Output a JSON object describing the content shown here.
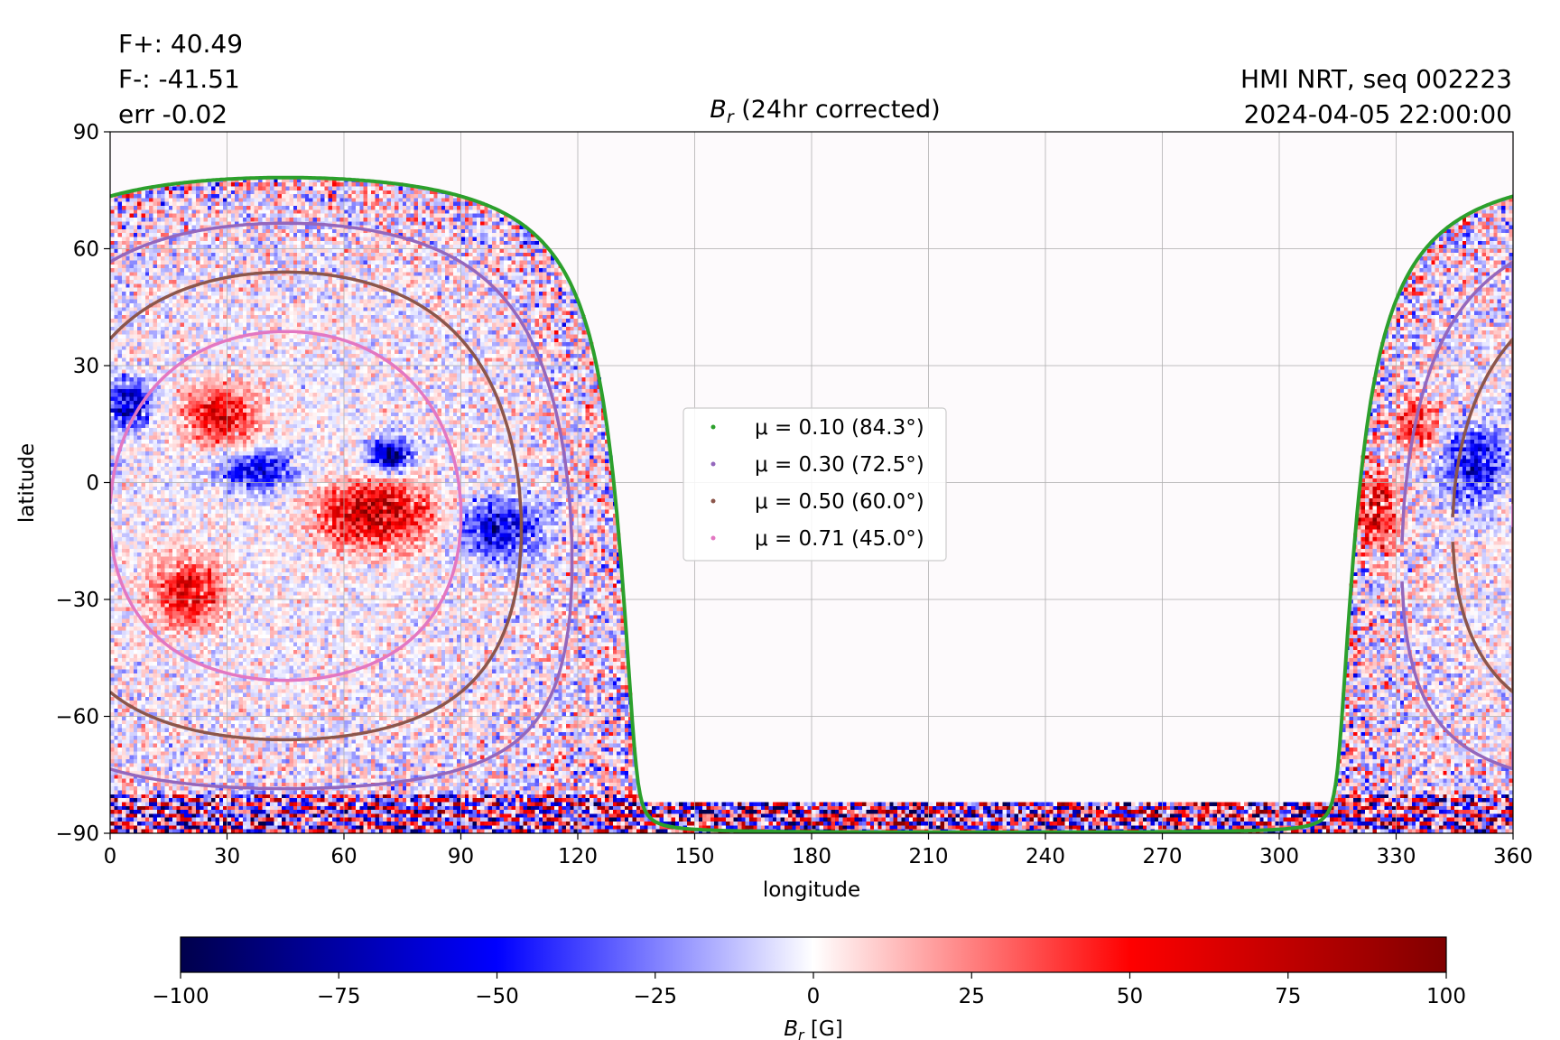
{
  "header": {
    "left_lines": [
      "F+: 40.49",
      "F-: -41.51",
      "err -0.02"
    ],
    "right_lines": [
      "HMI NRT, seq 002223",
      "2024-04-05 22:00:00"
    ]
  },
  "chart_data": [
    {
      "type": "heatmap",
      "title": "B_r (24hr corrected)",
      "title_symbol": "B",
      "title_subscript": "r",
      "title_rest": " (24hr corrected)",
      "xlabel": "longitude",
      "ylabel": "latitude",
      "xlim": [
        0,
        360
      ],
      "ylim": [
        -90,
        90
      ],
      "xticks": [
        0,
        30,
        60,
        90,
        120,
        150,
        180,
        210,
        240,
        270,
        300,
        330,
        360
      ],
      "yticks": [
        -90,
        -60,
        -30,
        0,
        30,
        60,
        90
      ],
      "ytick_labels": [
        "−90",
        "−60",
        "−30",
        "0",
        "30",
        "60",
        "90"
      ],
      "grid": true,
      "colormap": "seismic",
      "color_range": [
        -100,
        100
      ],
      "visible_hemisphere_center_longitude": 45,
      "legend_position": "center",
      "series": [
        {
          "name": "μ = 0.10 (84.3°)",
          "mu": 0.1,
          "angle_deg": 84.3,
          "color": "#2ca02c"
        },
        {
          "name": "μ = 0.30 (72.5°)",
          "mu": 0.3,
          "angle_deg": 72.5,
          "color": "#9467bd"
        },
        {
          "name": "μ = 0.50 (60.0°)",
          "mu": 0.5,
          "angle_deg": 60.0,
          "color": "#8c564b"
        },
        {
          "name": "μ = 0.71 (45.0°)",
          "mu": 0.71,
          "angle_deg": 45.0,
          "color": "#e377c2"
        }
      ],
      "colorbar": {
        "label": "B_r [G]",
        "label_symbol": "B",
        "label_subscript": "r",
        "label_rest": " [G]",
        "ticks": [
          -100,
          -75,
          -50,
          -25,
          0,
          25,
          50,
          75,
          100
        ],
        "tick_labels": [
          "−100",
          "−75",
          "−50",
          "−25",
          "0",
          "25",
          "50",
          "75",
          "100"
        ]
      }
    }
  ]
}
